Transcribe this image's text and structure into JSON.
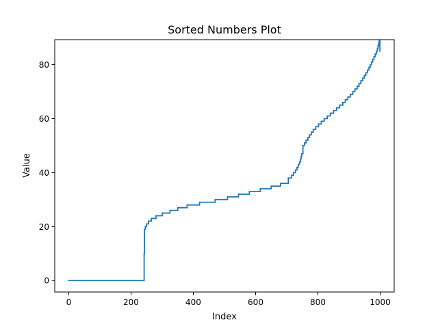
{
  "chart_data": {
    "type": "line",
    "title": "Sorted Numbers Plot",
    "xlabel": "Index",
    "ylabel": "Value",
    "xlim": [
      -45,
      1045
    ],
    "ylim": [
      -4.25,
      89.25
    ],
    "xticks": [
      0,
      200,
      400,
      600,
      800,
      1000
    ],
    "yticks": [
      0,
      20,
      40,
      60,
      80
    ],
    "grid": false,
    "legend": "none",
    "series": [
      {
        "color": "#1f77b4",
        "step": true,
        "x": [
          0,
          240,
          242,
          243,
          246,
          250,
          256,
          265,
          280,
          300,
          325,
          350,
          380,
          420,
          470,
          510,
          545,
          580,
          615,
          650,
          680,
          705,
          715,
          722,
          728,
          733,
          737,
          741,
          744,
          746,
          748,
          752,
          757,
          762,
          768,
          773,
          779,
          785,
          793,
          802,
          811,
          820,
          830,
          840,
          850,
          860,
          870,
          880,
          888,
          896,
          904,
          912,
          919,
          926,
          932,
          938,
          944,
          949,
          954,
          959,
          964,
          968,
          972,
          976,
          980,
          984,
          988,
          991,
          993,
          995,
          997,
          999
        ],
        "y": [
          0,
          0,
          10,
          19,
          20,
          21,
          22,
          23,
          24,
          25,
          26,
          27,
          28,
          29,
          30,
          31,
          32,
          33,
          34,
          35,
          36,
          38,
          39,
          40,
          41,
          42,
          43,
          44,
          45,
          46,
          47,
          50,
          51,
          52,
          53,
          54,
          55,
          56,
          57,
          58,
          59,
          60,
          61,
          62,
          63,
          64,
          65,
          66,
          67,
          68,
          69,
          70,
          71,
          72,
          73,
          74,
          75,
          76,
          77,
          78,
          79,
          80,
          81,
          82,
          83,
          84,
          85,
          86,
          87,
          88,
          89,
          85
        ]
      }
    ]
  }
}
